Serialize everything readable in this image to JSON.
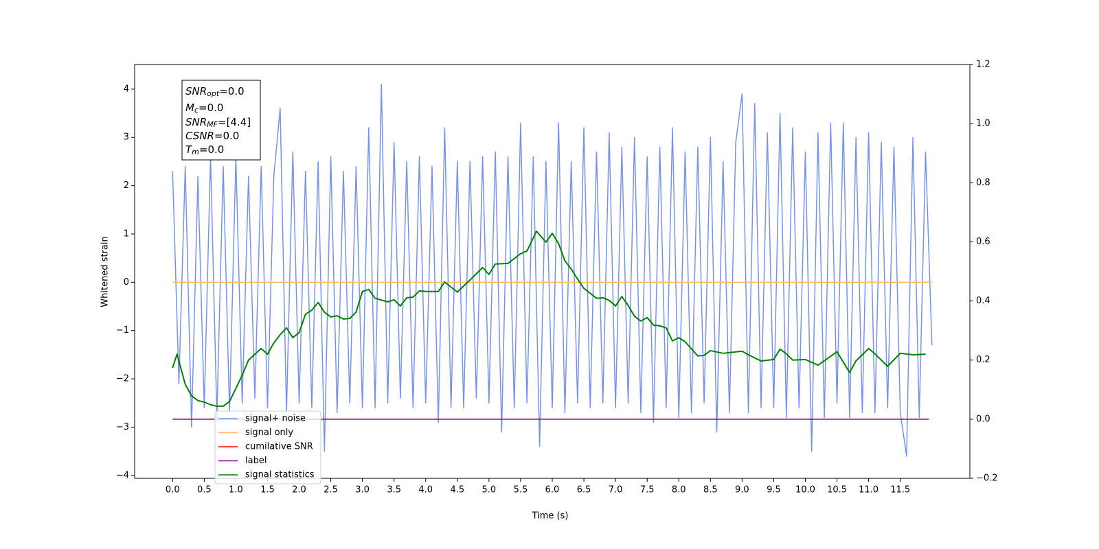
{
  "chart_data": {
    "type": "line",
    "xlabel": "Time (s)",
    "ylabel": "Whitened strain",
    "xlim": [
      -0.6,
      12.6
    ],
    "ylim": [
      -4.06,
      4.51
    ],
    "y2lim": [
      -0.2,
      1.2
    ],
    "xticks": [
      {
        "value": 0,
        "label": "0.0"
      },
      0.5,
      {
        "value": 1,
        "label": "1.0"
      },
      1.5,
      {
        "value": 2,
        "label": "2.0"
      },
      2.5,
      {
        "value": 3,
        "label": "3.0"
      },
      3.5,
      {
        "value": 4,
        "label": "4.0"
      },
      4.5,
      {
        "value": 5,
        "label": "5.0"
      },
      5.5,
      {
        "value": 6,
        "label": "6.0"
      },
      6.5,
      {
        "value": 7,
        "label": "7.0"
      },
      7.5,
      {
        "value": 8,
        "label": "8.0"
      },
      8.5,
      {
        "value": 9,
        "label": "9.0"
      },
      9.5,
      {
        "value": 10,
        "label": "10.0"
      },
      10.5,
      {
        "value": 11,
        "label": "11.0"
      },
      11.5
    ],
    "yticks": [
      {
        "value": -4,
        "label": "−4"
      },
      {
        "value": -3,
        "label": "−3"
      },
      {
        "value": -2,
        "label": "−2"
      },
      {
        "value": -1,
        "label": "−1"
      },
      0,
      1,
      2,
      3,
      4
    ],
    "y2ticks": [
      {
        "value": -0.2,
        "label": "−0.2"
      },
      {
        "value": 0,
        "label": "0.0"
      },
      0.2,
      0.4,
      0.6,
      0.8,
      {
        "value": 1,
        "label": "1.0"
      },
      1.2
    ],
    "legend": "lower left",
    "annotation": [
      {
        "main": "SNR",
        "sub": "opt",
        "rest": "=0.0"
      },
      {
        "main": "M",
        "sub": "c",
        "rest": "=0.0"
      },
      {
        "main": "SNR",
        "sub": "MF",
        "rest": "=[4.4]"
      },
      {
        "main": "CSNR",
        "sub": "",
        "rest": "=0.0"
      },
      {
        "main": "T",
        "sub": "m",
        "rest": "=0.0"
      }
    ],
    "series": [
      {
        "name": "signal+ noise",
        "color": "#7793e8",
        "x": [
          0,
          0.1,
          0.2,
          0.3,
          0.4,
          0.5,
          0.6,
          0.7,
          0.8,
          0.9,
          1,
          1.1,
          1.2,
          1.3,
          1.4,
          1.5,
          1.6,
          1.7,
          1.8,
          1.9,
          2,
          2.1,
          2.2,
          2.3,
          2.4,
          2.5,
          2.6,
          2.7,
          2.8,
          2.9,
          3,
          3.1,
          3.2,
          3.3,
          3.4,
          3.5,
          3.6,
          3.7,
          3.8,
          3.9,
          4,
          4.1,
          4.2,
          4.3,
          4.4,
          4.5,
          4.6,
          4.7,
          4.8,
          4.9,
          5,
          5.1,
          5.2,
          5.3,
          5.4,
          5.5,
          5.6,
          5.7,
          5.8,
          5.9,
          6,
          6.1,
          6.2,
          6.3,
          6.4,
          6.5,
          6.6,
          6.7,
          6.8,
          6.9,
          7,
          7.1,
          7.2,
          7.3,
          7.4,
          7.5,
          7.6,
          7.7,
          7.8,
          7.9,
          8,
          8.1,
          8.2,
          8.3,
          8.4,
          8.5,
          8.6,
          8.7,
          8.8,
          8.9,
          9,
          9.1,
          9.2,
          9.3,
          9.4,
          9.5,
          9.6,
          9.7,
          9.8,
          9.9,
          10,
          10.1,
          10.2,
          10.3,
          10.4,
          10.5,
          10.6,
          10.7,
          10.8,
          10.9,
          11,
          11.1,
          11.2,
          11.3,
          11.4,
          11.5,
          11.6,
          11.7,
          11.8,
          11.9,
          12
        ],
        "values": [
          2.3,
          -2.1,
          2.4,
          -3.0,
          2.2,
          -2.6,
          2.6,
          -2.8,
          2.4,
          -2.7,
          2.6,
          -2.5,
          2.2,
          -2.4,
          2.4,
          -2.6,
          2.2,
          3.6,
          -2.7,
          2.7,
          -2.5,
          2.3,
          -2.6,
          2.5,
          -3.5,
          2.6,
          -2.7,
          2.3,
          -2.5,
          2.4,
          -2.6,
          3.2,
          -2.6,
          4.1,
          -2.5,
          2.9,
          -2.4,
          2.5,
          -2.6,
          2.6,
          -2.5,
          2.4,
          -2.9,
          3.2,
          -2.6,
          2.5,
          -2.6,
          2.5,
          -2.4,
          2.6,
          -2.5,
          2.7,
          -3.1,
          2.6,
          -2.6,
          3.3,
          -2.5,
          2.6,
          -3.4,
          2.5,
          -2.6,
          3.3,
          -2.7,
          2.5,
          -2.5,
          3.2,
          -2.6,
          2.7,
          -2.5,
          3.1,
          -2.6,
          2.8,
          -2.5,
          3.0,
          -2.7,
          2.6,
          -2.9,
          2.8,
          -2.6,
          3.2,
          -2.8,
          2.7,
          -2.7,
          2.8,
          -2.5,
          3.0,
          -3.1,
          2.5,
          -2.7,
          2.9,
          3.9,
          -2.7,
          3.7,
          -2.6,
          3.1,
          -2.6,
          3.5,
          -2.8,
          3.2,
          -2.6,
          2.7,
          -3.5,
          3.1,
          -2.8,
          3.3,
          -2.5,
          3.3,
          -2.8,
          3.0,
          -2.7,
          3.1,
          -2.7,
          2.9,
          -2.6,
          2.8,
          -2.7,
          -3.6,
          3.0,
          -2.8,
          2.7,
          -1.3
        ]
      },
      {
        "name": "signal only",
        "color": "#ffbf66",
        "x": [
          0,
          12
        ],
        "values": [
          0,
          0
        ]
      },
      {
        "name": "cumilative SNR",
        "color": "#ff0000"
      },
      {
        "name": "label",
        "color": "#800080",
        "axis": "y2",
        "x": [
          0,
          11.95
        ],
        "values": [
          0,
          0
        ]
      },
      {
        "name": "signal statistics",
        "color": "#008000",
        "axis": "y2",
        "x": [
          0,
          0.07,
          0.2,
          0.3,
          0.4,
          0.5,
          0.6,
          0.7,
          0.8,
          0.9,
          1,
          1.1,
          1.2,
          1.3,
          1.4,
          1.5,
          1.6,
          1.7,
          1.8,
          1.9,
          2,
          2.1,
          2.2,
          2.3,
          2.4,
          2.5,
          2.6,
          2.7,
          2.8,
          2.9,
          3,
          3.1,
          3.2,
          3.4,
          3.5,
          3.6,
          3.7,
          3.8,
          3.9,
          4,
          4.2,
          4.3,
          4.5,
          4.7,
          4.9,
          5,
          5.1,
          5.3,
          5.5,
          5.6,
          5.75,
          5.9,
          6,
          6.1,
          6.2,
          6.3,
          6.4,
          6.5,
          6.7,
          6.8,
          6.9,
          7,
          7.1,
          7.2,
          7.3,
          7.4,
          7.5,
          7.6,
          7.7,
          7.8,
          7.9,
          8,
          8.1,
          8.3,
          8.4,
          8.5,
          8.7,
          9,
          9.1,
          9.3,
          9.5,
          9.6,
          9.7,
          9.8,
          10,
          10.2,
          10.5,
          10.7,
          10.8,
          11,
          11.1,
          11.3,
          11.5,
          11.7,
          11.9
        ],
        "values": [
          0.174,
          0.22,
          0.118,
          0.079,
          0.063,
          0.058,
          0.049,
          0.044,
          0.044,
          0.06,
          0.104,
          0.149,
          0.2,
          0.22,
          0.239,
          0.22,
          0.258,
          0.286,
          0.309,
          0.276,
          0.293,
          0.355,
          0.369,
          0.395,
          0.362,
          0.346,
          0.35,
          0.339,
          0.341,
          0.362,
          0.432,
          0.439,
          0.409,
          0.397,
          0.404,
          0.383,
          0.411,
          0.413,
          0.434,
          0.432,
          0.432,
          0.464,
          0.43,
          0.471,
          0.513,
          0.49,
          0.525,
          0.527,
          0.56,
          0.569,
          0.636,
          0.599,
          0.629,
          0.594,
          0.536,
          0.508,
          0.474,
          0.443,
          0.409,
          0.411,
          0.402,
          0.383,
          0.415,
          0.385,
          0.348,
          0.332,
          0.344,
          0.318,
          0.316,
          0.309,
          0.265,
          0.276,
          0.262,
          0.214,
          0.216,
          0.232,
          0.223,
          0.23,
          0.218,
          0.197,
          0.202,
          0.237,
          0.221,
          0.2,
          0.202,
          0.183,
          0.228,
          0.158,
          0.197,
          0.239,
          0.221,
          0.179,
          0.223,
          0.218,
          0.22
        ]
      }
    ]
  }
}
